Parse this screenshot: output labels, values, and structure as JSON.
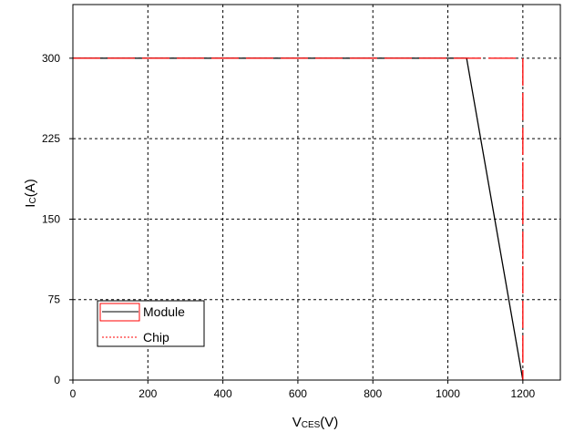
{
  "chart_data": {
    "type": "line",
    "xlabel_main": "V",
    "xlabel_sub": "CES",
    "xlabel_unit": "(V)",
    "ylabel_main": "I",
    "ylabel_sub": "C",
    "ylabel_unit": "(A)",
    "xlim": [
      0,
      1300
    ],
    "ylim": [
      0,
      350
    ],
    "xticks": [
      "0",
      "200",
      "400",
      "600",
      "800",
      "1000",
      "1200"
    ],
    "yticks": [
      "0",
      "75",
      "150",
      "225",
      "300"
    ],
    "grid": true,
    "legend_placement": "lower-left",
    "series": [
      {
        "name": "Module",
        "color": "#000000",
        "style": "solid",
        "points": [
          [
            0,
            300
          ],
          [
            1050,
            300
          ],
          [
            1200,
            0
          ]
        ]
      },
      {
        "name": "Chip",
        "color": "#ff0000",
        "style": "dashed",
        "points": [
          [
            0,
            300
          ],
          [
            1200,
            300
          ],
          [
            1200,
            0
          ]
        ]
      }
    ]
  }
}
